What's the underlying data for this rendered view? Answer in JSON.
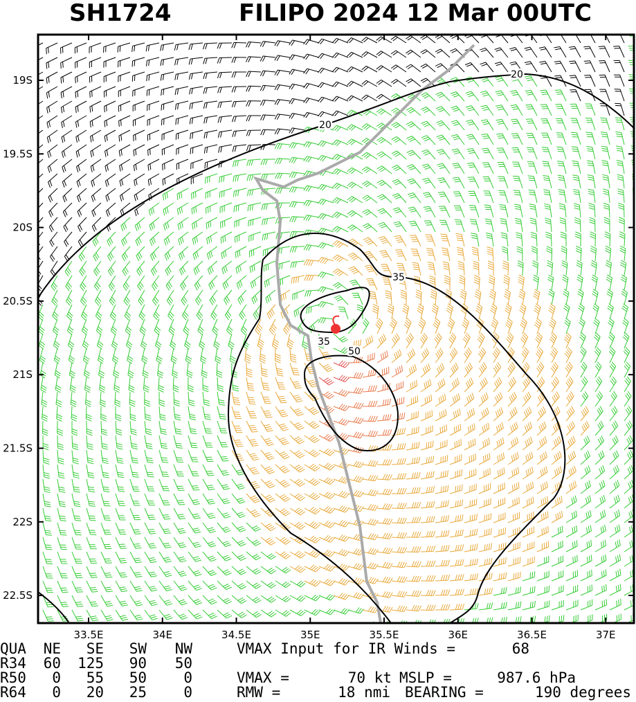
{
  "header": {
    "storm_id": "SH1724",
    "title": "FILIPO 2024 12 Mar 00UTC"
  },
  "map": {
    "lon_ticks": [
      {
        "value": 33.5,
        "label": "33.5E"
      },
      {
        "value": 34,
        "label": "34E"
      },
      {
        "value": 34.5,
        "label": "34.5E"
      },
      {
        "value": 35,
        "label": "35E"
      },
      {
        "value": 35.5,
        "label": "35.5E"
      },
      {
        "value": 36,
        "label": "36E"
      },
      {
        "value": 36.5,
        "label": "36.5E"
      },
      {
        "value": 37,
        "label": "37E"
      }
    ],
    "lat_ticks": [
      {
        "value": -19,
        "label": "19S"
      },
      {
        "value": -19.5,
        "label": "19.5S"
      },
      {
        "value": -20,
        "label": "20S"
      },
      {
        "value": -20.5,
        "label": "20.5S"
      },
      {
        "value": -21,
        "label": "21S"
      },
      {
        "value": -21.5,
        "label": "21.5S"
      },
      {
        "value": -22,
        "label": "22S"
      },
      {
        "value": -22.5,
        "label": "22.5S"
      }
    ],
    "contour_labels": [
      "20",
      "20",
      "35",
      "35",
      "50"
    ]
  },
  "table": {
    "header": [
      "QUA",
      "NE",
      "SE",
      "SW",
      "NW"
    ],
    "rows": [
      [
        "R34",
        60,
        125,
        90,
        50
      ],
      [
        "R50",
        0,
        55,
        50,
        0
      ],
      [
        "R64",
        0,
        20,
        25,
        0
      ]
    ]
  },
  "info": {
    "ir_vmax_label": "VMAX Input for IR Winds =",
    "ir_vmax": 68,
    "vmax_label": "VMAX =",
    "vmax": "70 kt",
    "mslp_label": "MSLP =",
    "mslp": "987.6 hPa",
    "rmw_label": "RMW =",
    "rmw": "18 nmi",
    "bearing_label": "BEARING =",
    "bearing": "190 degrees"
  }
}
